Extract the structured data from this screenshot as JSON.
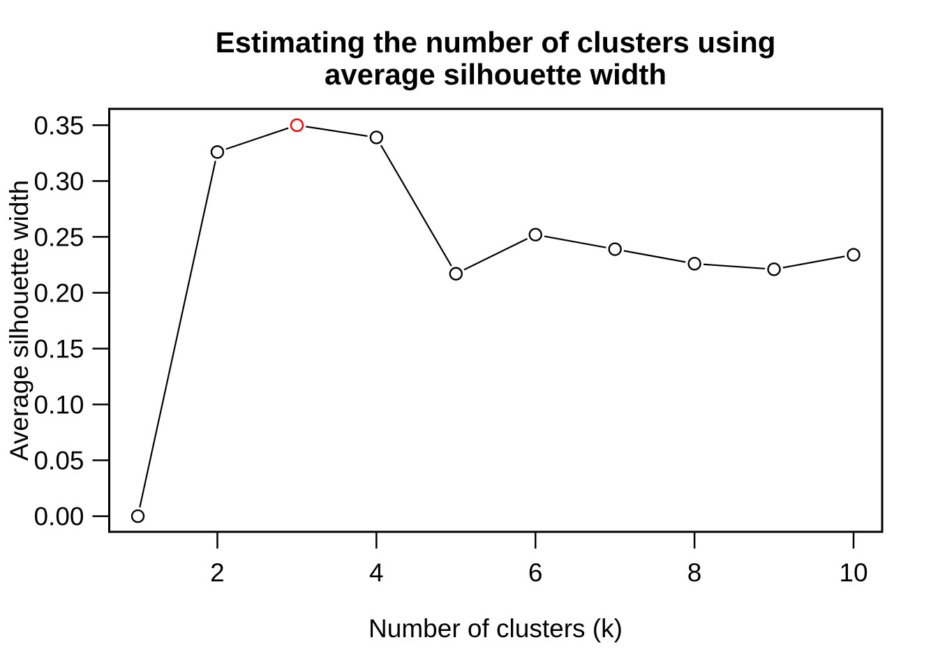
{
  "figure": {
    "background": "#FFFFFF"
  },
  "chart_data": {
    "type": "line",
    "title": "Estimating the number of clusters using average silhouette width",
    "title_lines": [
      "Estimating the number of clusters using",
      "average silhouette width"
    ],
    "xlabel": "Number of clusters (k)",
    "ylabel": "Average silhouette width",
    "x": [
      1,
      2,
      3,
      4,
      5,
      6,
      7,
      8,
      9,
      10
    ],
    "y": [
      0.0,
      0.326,
      0.35,
      0.339,
      0.217,
      0.252,
      0.239,
      0.226,
      0.221,
      0.234
    ],
    "x_ticks": [
      "2",
      "4",
      "6",
      "8",
      "10"
    ],
    "y_ticks": [
      "0.00",
      "0.05",
      "0.10",
      "0.15",
      "0.20",
      "0.25",
      "0.30",
      "0.35"
    ],
    "xlim": [
      0.64,
      10.36
    ],
    "ylim": [
      -0.014,
      0.3646
    ],
    "marker": "open-circle",
    "line_style": "segments-with-point-gaps",
    "axis_color": "#000000",
    "line_color": "#000000",
    "point_color": "#000000",
    "highlight": {
      "x": 3,
      "y": 0.35,
      "color": "#FF0000",
      "meaning": "optimal k (max average silhouette width)"
    },
    "grid": false,
    "legend": "none"
  }
}
